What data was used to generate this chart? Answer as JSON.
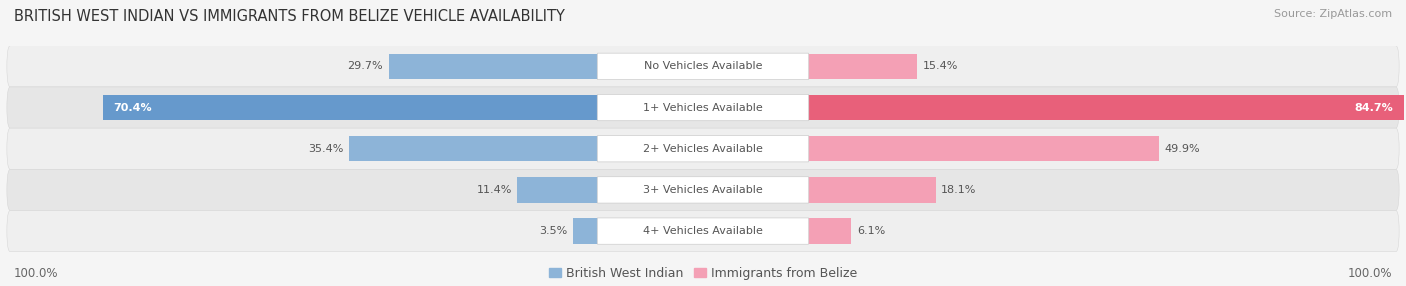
{
  "title": "BRITISH WEST INDIAN VS IMMIGRANTS FROM BELIZE VEHICLE AVAILABILITY",
  "source": "Source: ZipAtlas.com",
  "categories": [
    "No Vehicles Available",
    "1+ Vehicles Available",
    "2+ Vehicles Available",
    "3+ Vehicles Available",
    "4+ Vehicles Available"
  ],
  "bwi_values": [
    29.7,
    70.4,
    35.4,
    11.4,
    3.5
  ],
  "belize_values": [
    15.4,
    84.7,
    49.9,
    18.1,
    6.1
  ],
  "bwi_color": "#8db4d8",
  "bwi_color_strong": "#6699cc",
  "belize_color": "#f4a0b5",
  "belize_color_strong": "#e8607a",
  "row_bg_even": "#efefef",
  "row_bg_odd": "#e6e6e6",
  "label_bg_color": "#ffffff",
  "max_value": 100.0,
  "bar_height": 0.62,
  "title_fontsize": 10.5,
  "source_fontsize": 8,
  "label_fontsize": 8,
  "value_fontsize": 8,
  "legend_fontsize": 9,
  "footer_fontsize": 8.5
}
